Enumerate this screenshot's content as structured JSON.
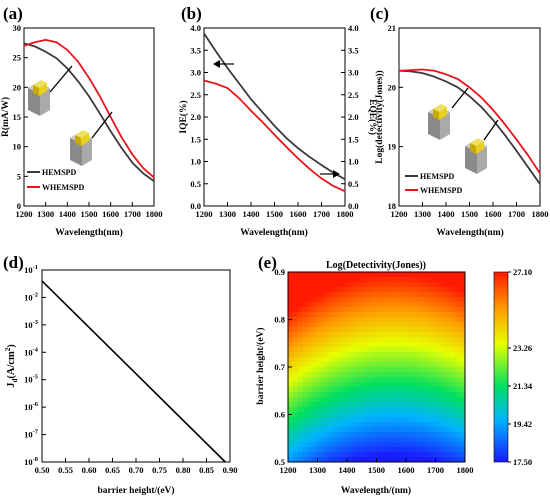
{
  "chart_data": [
    {
      "panel": "(a)",
      "type": "line",
      "xlabel": "Wavelength(nm)",
      "ylabel": "R(mA/W)",
      "xlim": [
        1200,
        1800
      ],
      "ylim": [
        0,
        30
      ],
      "xticks": [
        1200,
        1300,
        1400,
        1500,
        1600,
        1700,
        1800
      ],
      "yticks": [
        0,
        5,
        10,
        15,
        20,
        25,
        30
      ],
      "legend": "bottom-left",
      "x": [
        1200,
        1250,
        1300,
        1350,
        1400,
        1450,
        1500,
        1550,
        1600,
        1650,
        1700,
        1750,
        1800
      ],
      "series": [
        {
          "name": "HEMSPD",
          "color": "#3a3a3a",
          "values": [
            27.4,
            26.9,
            26.0,
            24.9,
            23.2,
            21.0,
            18.5,
            15.6,
            12.6,
            9.8,
            7.3,
            5.5,
            4.2
          ]
        },
        {
          "name": "WHEMSPD",
          "color": "#e8141c",
          "values": [
            27.0,
            27.6,
            28.0,
            27.6,
            26.3,
            24.3,
            21.6,
            18.5,
            15.0,
            11.6,
            8.7,
            6.4,
            4.8
          ]
        }
      ]
    },
    {
      "panel": "(b)",
      "type": "line",
      "xlabel": "Wavelength(nm)",
      "ylabel_left": "IQE(%)",
      "ylabel_right": "EQE(%)",
      "xlim": [
        1200,
        1800
      ],
      "ylim": [
        0,
        4.0
      ],
      "xticks": [
        1200,
        1300,
        1400,
        1500,
        1600,
        1700,
        1800
      ],
      "yticks": [
        0,
        0.5,
        1.0,
        1.5,
        2.0,
        2.5,
        3.0,
        3.5,
        4.0
      ],
      "yticks_right": [
        "0.0",
        "0.5",
        "1.0",
        "1.5",
        "2.0",
        "2.5",
        "3.0",
        "3.5",
        "4.0"
      ],
      "x": [
        1200,
        1250,
        1300,
        1350,
        1400,
        1450,
        1500,
        1550,
        1600,
        1650,
        1700,
        1750,
        1800
      ],
      "series": [
        {
          "name": "IQE",
          "color": "#3a3a3a",
          "axis": "left",
          "values": [
            3.88,
            3.48,
            3.1,
            2.75,
            2.4,
            2.1,
            1.8,
            1.53,
            1.3,
            1.1,
            0.92,
            0.75,
            0.6
          ]
        },
        {
          "name": "EQE",
          "color": "#e8141c",
          "axis": "right",
          "values": [
            2.82,
            2.75,
            2.65,
            2.42,
            2.14,
            1.88,
            1.6,
            1.33,
            1.07,
            0.83,
            0.62,
            0.45,
            0.33
          ]
        }
      ]
    },
    {
      "panel": "(c)",
      "type": "line",
      "xlabel": "Wavelength(nm)",
      "ylabel": "Log(detectivity(Jones))",
      "xlim": [
        1200,
        1800
      ],
      "ylim": [
        18,
        21
      ],
      "xticks": [
        1200,
        1300,
        1400,
        1500,
        1600,
        1700,
        1800
      ],
      "yticks": [
        18,
        19,
        20,
        21
      ],
      "legend": "bottom-left",
      "x": [
        1200,
        1250,
        1300,
        1350,
        1400,
        1450,
        1500,
        1550,
        1600,
        1650,
        1700,
        1750,
        1800
      ],
      "series": [
        {
          "name": "HEMSPD",
          "color": "#3a3a3a",
          "values": [
            20.28,
            20.27,
            20.24,
            20.18,
            20.1,
            20.0,
            19.85,
            19.67,
            19.45,
            19.2,
            18.93,
            18.65,
            18.37
          ]
        },
        {
          "name": "WHEMSPD",
          "color": "#e8141c",
          "values": [
            20.28,
            20.29,
            20.3,
            20.28,
            20.22,
            20.14,
            20.0,
            19.83,
            19.62,
            19.38,
            19.12,
            18.85,
            18.55
          ]
        }
      ]
    },
    {
      "panel": "(d)",
      "type": "line",
      "xlabel": "barrier height/(eV)",
      "ylabel": "Jd(A/cm2)",
      "scale_y": "log",
      "xlim": [
        0.5,
        0.9
      ],
      "ylim_exp": [
        -8,
        -1
      ],
      "xticks": [
        "0.50",
        "0.55",
        "0.60",
        "0.65",
        "0.70",
        "0.75",
        "0.80",
        "0.85",
        "0.90"
      ],
      "yticks": [
        "10-8",
        "10-7",
        "10-6",
        "10-5",
        "10-4",
        "10-3",
        "10-2",
        "10-1"
      ],
      "series": [
        {
          "color": "#000000",
          "x": [
            0.5,
            0.89
          ],
          "values": [
            0.04,
            1e-08
          ]
        }
      ]
    },
    {
      "panel": "(e)",
      "type": "heatmap",
      "title": "Log(Detectivity(Jones))",
      "xlabel": "Wavelength/(nm)",
      "ylabel": "barrier height/(eV)",
      "xlim": [
        1200,
        1800
      ],
      "ylim": [
        0.5,
        0.9
      ],
      "xticks": [
        1200,
        1300,
        1400,
        1500,
        1600,
        1700,
        1800
      ],
      "yticks": [
        "0.5",
        "0.6",
        "0.7",
        "0.8",
        "0.9"
      ],
      "colorbar": {
        "min": 17.5,
        "max": 27.1,
        "ticks": [
          "17.50",
          "19.42",
          "21.34",
          "23.26",
          "27.10"
        ]
      }
    }
  ],
  "insets": {
    "panel_a": [
      "device-3d-icon",
      "device-3d-icon"
    ],
    "panel_c": [
      "device-3d-icon",
      "device-3d-icon"
    ]
  }
}
